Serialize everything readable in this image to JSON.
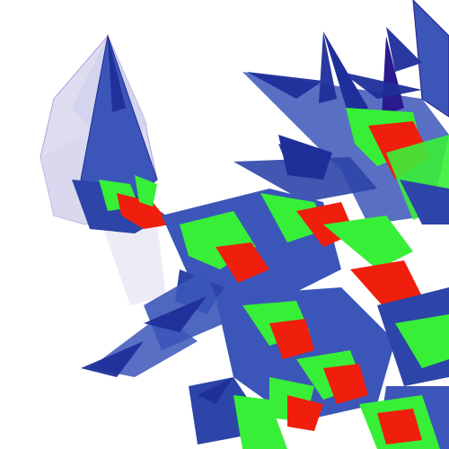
{
  "scene": {
    "subject": "abstract-spiky-crystal-render",
    "background": "#ffffff",
    "palette": {
      "shard_dark": "#1f2f9a",
      "shard_mid": "#3b56b8",
      "shard_light": "#7d8fd6",
      "edge": "#2a1a8c",
      "ghost": "#b7b4e0",
      "inner_green": "#38ef38",
      "core_red": "#f01e0c",
      "purple_rim": "#5a2bb0"
    }
  }
}
